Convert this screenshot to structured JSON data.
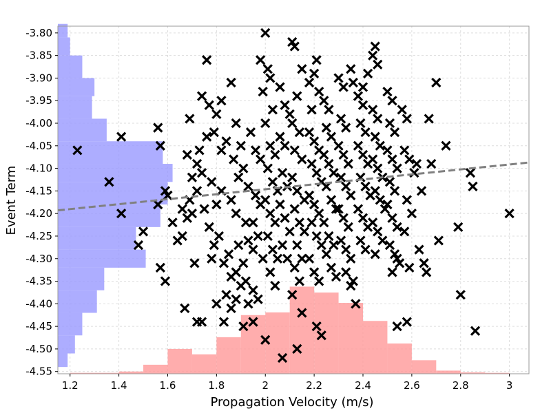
{
  "chart_data": {
    "type": "scatter",
    "title": "",
    "xlabel": "Propagation Velocity (m/s)",
    "ylabel": "Event Term",
    "xlim": [
      1.15,
      3.08
    ],
    "ylim": [
      -4.555,
      -3.785
    ],
    "grid": true,
    "xticks": [
      1.2,
      1.4,
      1.6,
      1.8,
      2,
      2.2,
      2.4,
      2.6,
      2.8,
      3
    ],
    "xtick_labels": [
      "1.2",
      "1.4",
      "1.6",
      "1.8",
      "2",
      "2.2",
      "2.4",
      "2.6",
      "2.8",
      "3"
    ],
    "yticks": [
      -3.8,
      -3.85,
      -3.9,
      -3.95,
      -4.0,
      -4.05,
      -4.1,
      -4.15,
      -4.2,
      -4.25,
      -4.3,
      -4.35,
      -4.4,
      -4.45,
      -4.5,
      -4.55
    ],
    "ytick_labels": [
      "-3.80",
      "-3.85",
      "-3.90",
      "-3.95",
      "-4.00",
      "-4.05",
      "-4.10",
      "-4.15",
      "-4.20",
      "-4.25",
      "-4.30",
      "-4.35",
      "-4.40",
      "-4.45",
      "-4.50",
      "-4.55"
    ],
    "trend_line": {
      "x": [
        1.15,
        3.08
      ],
      "y": [
        -4.193,
        -4.087
      ],
      "color": "#808080",
      "style": "dashed"
    },
    "marker": {
      "shape": "x",
      "color": "#000000"
    },
    "x_histogram": {
      "color": "#ff9999",
      "bin_edges": [
        1.2,
        1.3,
        1.4,
        1.5,
        1.6,
        1.7,
        1.8,
        1.9,
        2.0,
        2.1,
        2.2,
        2.3,
        2.4,
        2.5,
        2.6,
        2.7,
        2.8,
        2.9,
        3.0
      ],
      "tops_y": [
        -4.553,
        -4.553,
        -4.55,
        -4.535,
        -4.5,
        -4.512,
        -4.474,
        -4.425,
        -4.419,
        -4.362,
        -4.375,
        -4.398,
        -4.438,
        -4.488,
        -4.525,
        -4.548,
        -4.552,
        -4.553
      ]
    },
    "y_histogram": {
      "color": "#9999ff",
      "bin_edges": [
        -3.78,
        -3.81,
        -3.85,
        -3.9,
        -3.94,
        -3.99,
        -4.04,
        -4.09,
        -4.13,
        -4.18,
        -4.23,
        -4.28,
        -4.32,
        -4.37,
        -4.42,
        -4.47,
        -4.51,
        -4.54
      ],
      "right_x": [
        1.19,
        1.2,
        1.25,
        1.3,
        1.29,
        1.35,
        1.58,
        1.62,
        1.6,
        1.57,
        1.47,
        1.51,
        1.34,
        1.31,
        1.25,
        1.22,
        1.19
      ]
    },
    "points": [
      [
        1.23,
        -4.06
      ],
      [
        1.36,
        -4.13
      ],
      [
        1.41,
        -4.03
      ],
      [
        1.41,
        -4.2
      ],
      [
        1.48,
        -4.27
      ],
      [
        1.5,
        -4.24
      ],
      [
        1.56,
        -4.01
      ],
      [
        1.57,
        -4.05
      ],
      [
        1.59,
        -4.15
      ],
      [
        1.6,
        -4.16
      ],
      [
        1.56,
        -4.18
      ],
      [
        1.57,
        -4.32
      ],
      [
        1.59,
        -4.35
      ],
      [
        1.67,
        -4.41
      ],
      [
        1.71,
        -4.31
      ],
      [
        1.72,
        -4.44
      ],
      [
        1.74,
        -4.44
      ],
      [
        1.62,
        -4.22
      ],
      [
        1.64,
        -4.26
      ],
      [
        1.66,
        -4.25
      ],
      [
        1.68,
        -4.21
      ],
      [
        1.7,
        -4.2
      ],
      [
        1.66,
        -4.19
      ],
      [
        1.69,
        -4.17
      ],
      [
        1.72,
        -4.15
      ],
      [
        1.7,
        -4.12
      ],
      [
        1.72,
        -4.09
      ],
      [
        1.74,
        -4.11
      ],
      [
        1.68,
        -4.07
      ],
      [
        1.73,
        -4.06
      ],
      [
        1.69,
        -3.99
      ],
      [
        1.76,
        -3.86
      ],
      [
        1.74,
        -3.94
      ],
      [
        1.77,
        -3.96
      ],
      [
        1.8,
        -3.98
      ],
      [
        1.82,
        -3.95
      ],
      [
        1.76,
        -4.03
      ],
      [
        1.79,
        -4.02
      ],
      [
        1.82,
        -4.06
      ],
      [
        1.84,
        -4.04
      ],
      [
        1.78,
        -4.13
      ],
      [
        1.8,
        -4.18
      ],
      [
        1.82,
        -4.15
      ],
      [
        1.75,
        -4.19
      ],
      [
        1.77,
        -4.23
      ],
      [
        1.79,
        -4.27
      ],
      [
        1.81,
        -4.25
      ],
      [
        1.78,
        -4.3
      ],
      [
        1.83,
        -4.31
      ],
      [
        1.85,
        -4.29
      ],
      [
        1.86,
        -4.34
      ],
      [
        1.88,
        -4.33
      ],
      [
        1.8,
        -4.4
      ],
      [
        1.84,
        -4.38
      ],
      [
        1.86,
        -4.41
      ],
      [
        1.88,
        -4.39
      ],
      [
        1.9,
        -4.36
      ],
      [
        1.83,
        -4.44
      ],
      [
        1.86,
        -3.91
      ],
      [
        1.88,
        -4.0
      ],
      [
        1.9,
        -4.05
      ],
      [
        1.87,
        -4.08
      ],
      [
        1.89,
        -4.12
      ],
      [
        1.91,
        -4.1
      ],
      [
        1.86,
        -4.17
      ],
      [
        1.88,
        -4.2
      ],
      [
        1.92,
        -4.22
      ],
      [
        1.89,
        -4.27
      ],
      [
        1.93,
        -4.26
      ],
      [
        1.91,
        -4.31
      ],
      [
        1.95,
        -4.28
      ],
      [
        1.92,
        -4.35
      ],
      [
        1.95,
        -4.37
      ],
      [
        1.93,
        -4.4
      ],
      [
        1.97,
        -4.39
      ],
      [
        1.91,
        -4.45
      ],
      [
        1.95,
        -4.44
      ],
      [
        1.94,
        -4.02
      ],
      [
        1.96,
        -4.06
      ],
      [
        1.98,
        -4.08
      ],
      [
        1.93,
        -4.14
      ],
      [
        1.96,
        -4.16
      ],
      [
        1.98,
        -4.18
      ],
      [
        1.95,
        -4.22
      ],
      [
        1.97,
        -4.25
      ],
      [
        1.99,
        -4.3
      ],
      [
        1.98,
        -3.86
      ],
      [
        2.0,
        -3.8
      ],
      [
        2.01,
        -3.88
      ],
      [
        1.99,
        -3.93
      ],
      [
        2.02,
        -3.9
      ],
      [
        2.03,
        -3.97
      ],
      [
        2.0,
        -4.0
      ],
      [
        2.02,
        -4.05
      ],
      [
        2.04,
        -4.07
      ],
      [
        2.01,
        -4.1
      ],
      [
        2.03,
        -4.13
      ],
      [
        2.05,
        -4.15
      ],
      [
        2.0,
        -4.17
      ],
      [
        2.02,
        -4.2
      ],
      [
        2.04,
        -4.22
      ],
      [
        2.01,
        -4.25
      ],
      [
        2.03,
        -4.28
      ],
      [
        2.05,
        -4.3
      ],
      [
        2.02,
        -4.33
      ],
      [
        2.04,
        -4.36
      ],
      [
        2.0,
        -4.48
      ],
      [
        2.07,
        -4.52
      ],
      [
        2.06,
        -4.03
      ],
      [
        2.08,
        -4.05
      ],
      [
        2.07,
        -4.11
      ],
      [
        2.09,
        -4.14
      ],
      [
        2.06,
        -4.18
      ],
      [
        2.08,
        -4.21
      ],
      [
        2.1,
        -4.24
      ],
      [
        2.07,
        -4.27
      ],
      [
        2.09,
        -4.3
      ],
      [
        2.06,
        -3.92
      ],
      [
        2.08,
        -3.96
      ],
      [
        2.1,
        -3.98
      ],
      [
        2.11,
        -3.82
      ],
      [
        2.12,
        -3.83
      ],
      [
        2.15,
        -3.88
      ],
      [
        2.13,
        -3.94
      ],
      [
        2.11,
        -4.0
      ],
      [
        2.14,
        -4.02
      ],
      [
        2.12,
        -4.06
      ],
      [
        2.15,
        -4.08
      ],
      [
        2.11,
        -4.12
      ],
      [
        2.13,
        -4.15
      ],
      [
        2.16,
        -4.17
      ],
      [
        2.12,
        -4.19
      ],
      [
        2.14,
        -4.22
      ],
      [
        2.16,
        -4.24
      ],
      [
        2.13,
        -4.27
      ],
      [
        2.15,
        -4.3
      ],
      [
        2.12,
        -4.32
      ],
      [
        2.14,
        -4.35
      ],
      [
        2.11,
        -4.38
      ],
      [
        2.15,
        -4.42
      ],
      [
        2.13,
        -4.5
      ],
      [
        2.18,
        -3.91
      ],
      [
        2.2,
        -3.89
      ],
      [
        2.21,
        -3.86
      ],
      [
        2.19,
        -3.97
      ],
      [
        2.22,
        -3.93
      ],
      [
        2.18,
        -4.02
      ],
      [
        2.2,
        -4.04
      ],
      [
        2.22,
        -4.06
      ],
      [
        2.19,
        -4.09
      ],
      [
        2.21,
        -4.11
      ],
      [
        2.23,
        -4.13
      ],
      [
        2.18,
        -4.16
      ],
      [
        2.2,
        -4.18
      ],
      [
        2.22,
        -4.2
      ],
      [
        2.19,
        -4.22
      ],
      [
        2.21,
        -4.25
      ],
      [
        2.23,
        -4.27
      ],
      [
        2.18,
        -4.3
      ],
      [
        2.2,
        -4.33
      ],
      [
        2.22,
        -4.35
      ],
      [
        2.21,
        -4.45
      ],
      [
        2.23,
        -4.47
      ],
      [
        2.24,
        -3.95
      ],
      [
        2.26,
        -3.97
      ],
      [
        2.25,
        -4.01
      ],
      [
        2.27,
        -4.03
      ],
      [
        2.24,
        -4.07
      ],
      [
        2.26,
        -4.09
      ],
      [
        2.28,
        -4.11
      ],
      [
        2.25,
        -4.14
      ],
      [
        2.27,
        -4.17
      ],
      [
        2.29,
        -4.19
      ],
      [
        2.24,
        -4.22
      ],
      [
        2.26,
        -4.25
      ],
      [
        2.28,
        -4.27
      ],
      [
        2.25,
        -4.29
      ],
      [
        2.27,
        -4.32
      ],
      [
        2.29,
        -4.34
      ],
      [
        2.3,
        -3.9
      ],
      [
        2.32,
        -3.92
      ],
      [
        2.31,
        -3.99
      ],
      [
        2.33,
        -4.01
      ],
      [
        2.35,
        -3.88
      ],
      [
        2.36,
        -3.91
      ],
      [
        2.3,
        -4.05
      ],
      [
        2.32,
        -4.07
      ],
      [
        2.34,
        -4.09
      ],
      [
        2.31,
        -4.12
      ],
      [
        2.33,
        -4.14
      ],
      [
        2.35,
        -4.16
      ],
      [
        2.3,
        -4.19
      ],
      [
        2.32,
        -4.21
      ],
      [
        2.34,
        -4.23
      ],
      [
        2.31,
        -4.26
      ],
      [
        2.33,
        -4.28
      ],
      [
        2.35,
        -4.3
      ],
      [
        2.33,
        -4.33
      ],
      [
        2.35,
        -4.36
      ],
      [
        2.36,
        -4.35
      ],
      [
        2.37,
        -4.4
      ],
      [
        2.38,
        -3.94
      ],
      [
        2.4,
        -3.96
      ],
      [
        2.39,
        -4.0
      ],
      [
        2.41,
        -4.02
      ],
      [
        2.38,
        -4.05
      ],
      [
        2.4,
        -4.07
      ],
      [
        2.42,
        -4.09
      ],
      [
        2.39,
        -4.12
      ],
      [
        2.41,
        -4.14
      ],
      [
        2.43,
        -4.16
      ],
      [
        2.38,
        -4.19
      ],
      [
        2.4,
        -4.21
      ],
      [
        2.42,
        -4.23
      ],
      [
        2.39,
        -4.26
      ],
      [
        2.41,
        -4.28
      ],
      [
        2.4,
        -3.92
      ],
      [
        2.42,
        -3.89
      ],
      [
        2.44,
        -3.85
      ],
      [
        2.45,
        -3.83
      ],
      [
        2.46,
        -3.87
      ],
      [
        2.44,
        -3.97
      ],
      [
        2.46,
        -3.99
      ],
      [
        2.45,
        -4.03
      ],
      [
        2.47,
        -4.05
      ],
      [
        2.44,
        -4.08
      ],
      [
        2.46,
        -4.1
      ],
      [
        2.48,
        -4.12
      ],
      [
        2.45,
        -4.15
      ],
      [
        2.47,
        -4.17
      ],
      [
        2.49,
        -4.19
      ],
      [
        2.44,
        -4.22
      ],
      [
        2.46,
        -4.24
      ],
      [
        2.48,
        -4.26
      ],
      [
        2.45,
        -4.29
      ],
      [
        2.5,
        -3.93
      ],
      [
        2.52,
        -3.95
      ],
      [
        2.51,
        -4.0
      ],
      [
        2.53,
        -4.02
      ],
      [
        2.5,
        -4.06
      ],
      [
        2.52,
        -4.08
      ],
      [
        2.54,
        -4.1
      ],
      [
        2.51,
        -4.13
      ],
      [
        2.53,
        -4.15
      ],
      [
        2.5,
        -4.18
      ],
      [
        2.52,
        -4.21
      ],
      [
        2.54,
        -4.23
      ],
      [
        2.51,
        -4.27
      ],
      [
        2.53,
        -4.29
      ],
      [
        2.55,
        -4.31
      ],
      [
        2.52,
        -4.33
      ],
      [
        2.54,
        -4.3
      ],
      [
        2.56,
        -3.97
      ],
      [
        2.58,
        -3.99
      ],
      [
        2.57,
        -4.06
      ],
      [
        2.59,
        -4.08
      ],
      [
        2.61,
        -4.11
      ],
      [
        2.58,
        -4.17
      ],
      [
        2.6,
        -4.2
      ],
      [
        2.57,
        -4.24
      ],
      [
        2.59,
        -4.32
      ],
      [
        2.62,
        -4.09
      ],
      [
        2.64,
        -4.15
      ],
      [
        2.63,
        -4.28
      ],
      [
        2.65,
        -4.31
      ],
      [
        2.66,
        -4.33
      ],
      [
        2.67,
        -3.99
      ],
      [
        2.68,
        -4.09
      ],
      [
        2.7,
        -3.91
      ],
      [
        2.71,
        -4.26
      ],
      [
        2.74,
        -4.05
      ],
      [
        2.58,
        -4.44
      ],
      [
        2.54,
        -4.45
      ],
      [
        2.79,
        -4.23
      ],
      [
        2.8,
        -4.38
      ],
      [
        2.84,
        -4.11
      ],
      [
        2.85,
        -4.14
      ],
      [
        2.86,
        -4.46
      ],
      [
        3.0,
        -4.2
      ]
    ]
  }
}
